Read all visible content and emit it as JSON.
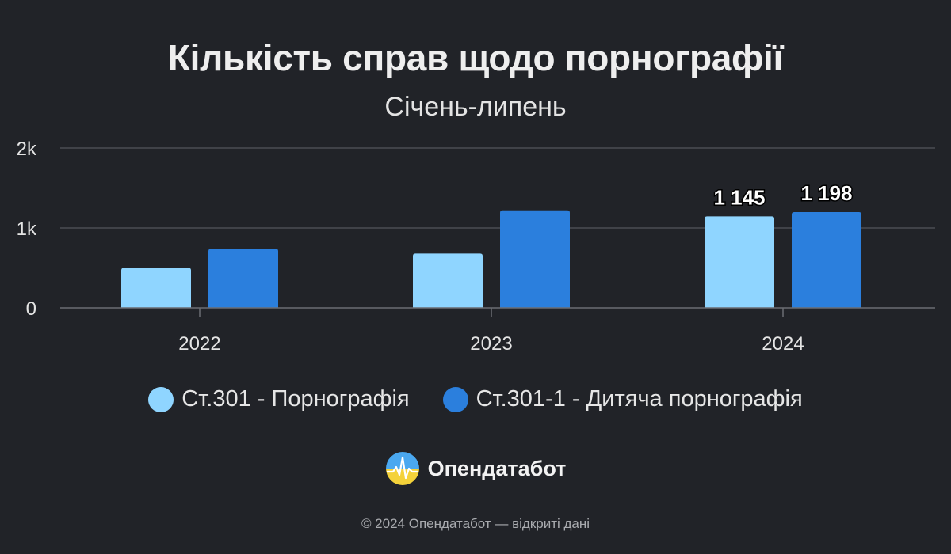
{
  "header": {
    "title": "Кількість справ щодо порнографії",
    "subtitle": "Січень-липень"
  },
  "chart_data": {
    "type": "bar",
    "title": "Кількість справ щодо порнографії",
    "subtitle": "Січень-липень",
    "categories": [
      "2022",
      "2023",
      "2024"
    ],
    "series": [
      {
        "name": "Ст.301 - Порнографія",
        "color": "#8fd5ff",
        "values": [
          500,
          680,
          1145
        ],
        "labels": [
          null,
          null,
          "1 145"
        ]
      },
      {
        "name": "Ст.301-1 - Дитяча порнографія",
        "color": "#2b7fdd",
        "values": [
          740,
          1220,
          1198
        ],
        "labels": [
          null,
          null,
          "1 198"
        ]
      }
    ],
    "yticks": [
      {
        "value": 0,
        "label": "0"
      },
      {
        "value": 1000,
        "label": "1k"
      },
      {
        "value": 2000,
        "label": "2k"
      }
    ],
    "ylim": [
      0,
      2000
    ],
    "grid": true,
    "legend_position": "bottom",
    "xlabel": "",
    "ylabel": ""
  },
  "brand": {
    "name": "Опендатабот"
  },
  "footer": {
    "copyright": "© 2024 Опендатабот — відкриті дані"
  },
  "colors": {
    "background": "#212328",
    "grid": "#4a4d53",
    "axis": "#6a6d72"
  }
}
